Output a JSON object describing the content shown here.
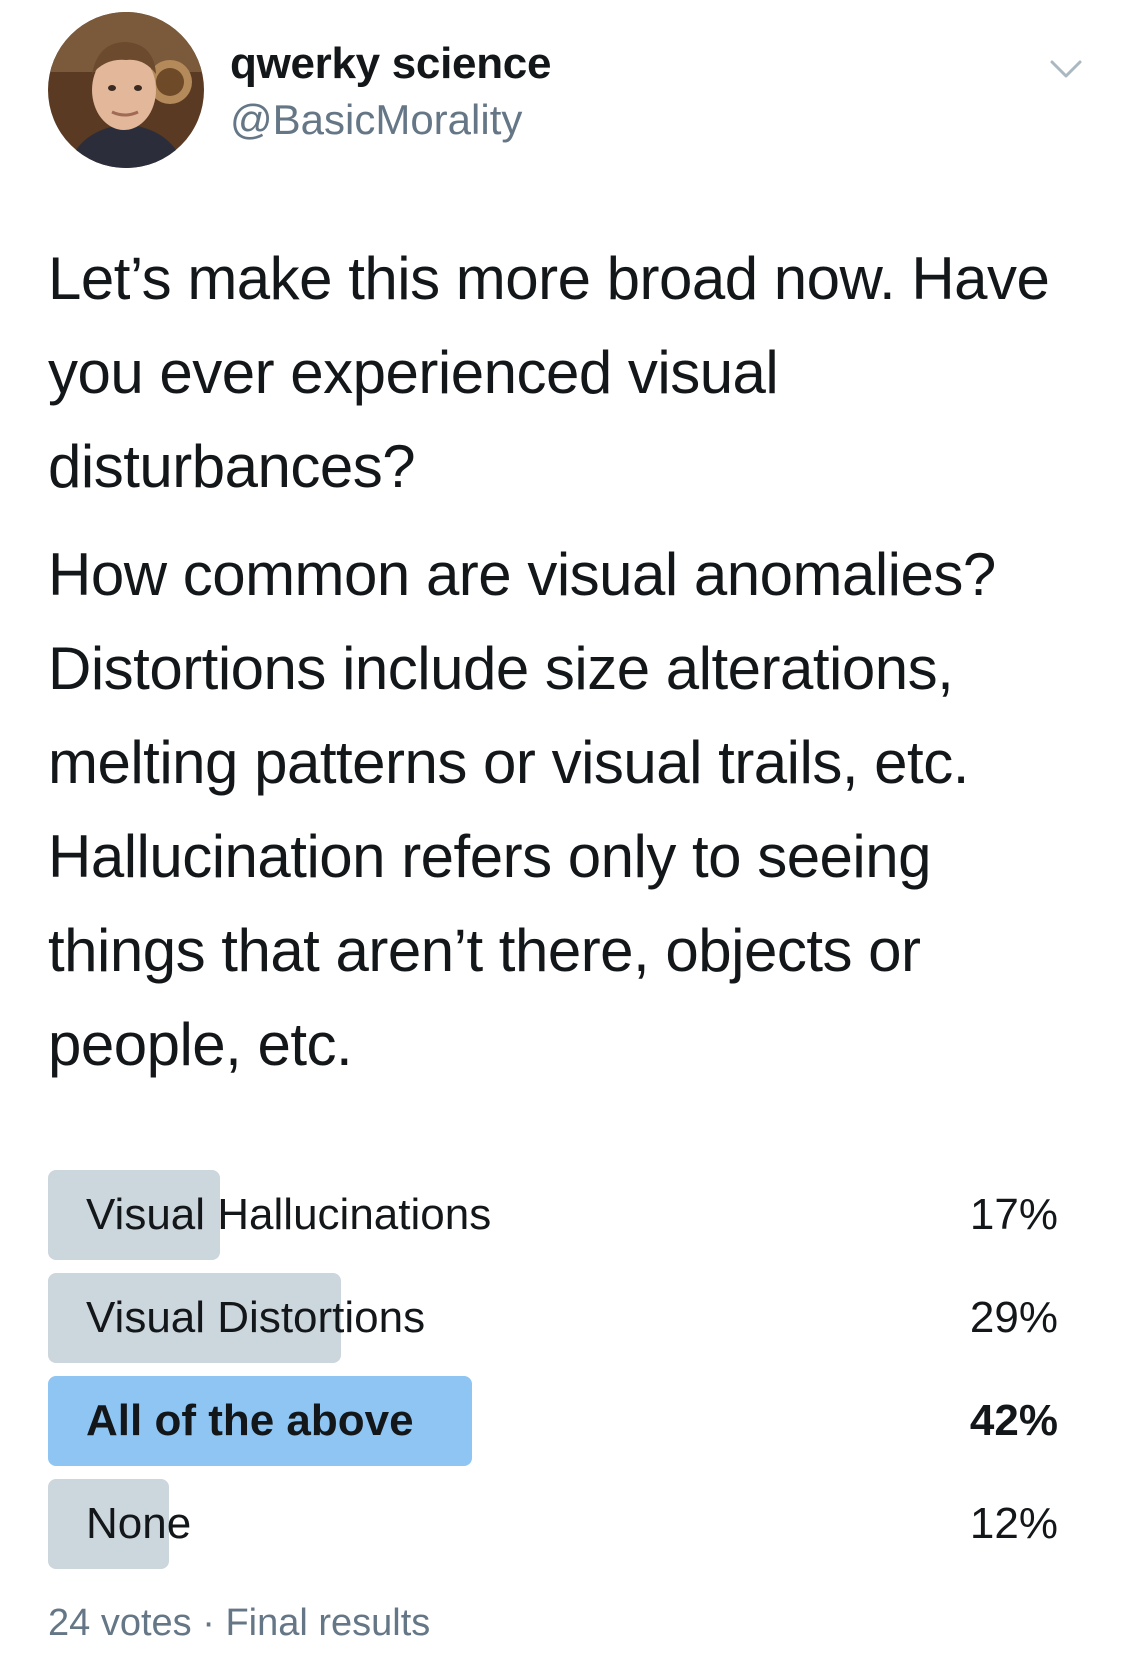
{
  "tweet": {
    "author": {
      "display_name": "qwerky science",
      "handle": "@BasicMorality"
    },
    "menu_icon": "chevron-down-icon",
    "paragraphs": [
      "Let’s make this more broad now. Have you ever experienced visual disturbances?",
      "How common are visual anomalies? Distortions include size alterations, melting patterns or visual trails, etc. Hallucination refers only to seeing things that aren’t there, objects or people, etc."
    ]
  },
  "poll": {
    "options": [
      {
        "label": "Visual Hallucinations",
        "percent_label": "17%",
        "percent": 17,
        "winner": false
      },
      {
        "label": "Visual Distortions",
        "percent_label": "29%",
        "percent": 29,
        "winner": false
      },
      {
        "label": "All of the above",
        "percent_label": "42%",
        "percent": 42,
        "winner": true
      },
      {
        "label": "None",
        "percent_label": "12%",
        "percent": 12,
        "winner": false
      }
    ],
    "votes": "24 votes",
    "separator": "·",
    "status": "Final results"
  },
  "colors": {
    "bar_default": "#ccd6dd",
    "bar_winner": "#8ec5f3",
    "text_primary": "#14171a",
    "text_secondary": "#657786"
  }
}
